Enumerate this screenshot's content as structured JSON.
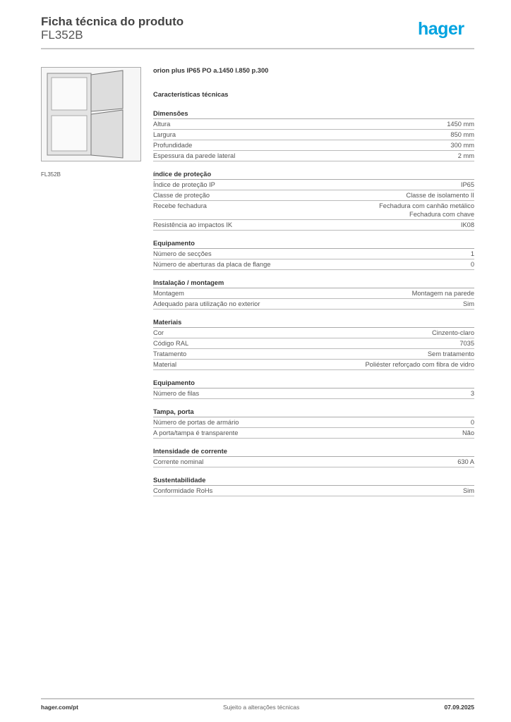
{
  "header": {
    "title": "Ficha técnica do produto",
    "product_code": "FL352B",
    "logo": "hager",
    "logo_color": "#00a3e0"
  },
  "image_caption": "FL352B",
  "product_name": "orion plus IP65 PO a.1450 l.850 p.300",
  "characteristics_title": "Características técnicas",
  "sections": [
    {
      "title": "Dimensões",
      "rows": [
        [
          "Altura",
          "1450 mm"
        ],
        [
          "Largura",
          "850 mm"
        ],
        [
          "Profundidade",
          "300 mm"
        ],
        [
          "Espessura da parede lateral",
          "2 mm"
        ]
      ]
    },
    {
      "title": "índice de proteção",
      "rows": [
        [
          "Índice de proteção IP",
          "IP65"
        ],
        [
          "Classe de proteção",
          "Classe de isolamento II"
        ],
        [
          "Recebe fechadura",
          "Fechadura com canhão metálico\nFechadura com chave"
        ],
        [
          "Resistência ao impactos IK",
          "IK08"
        ]
      ]
    },
    {
      "title": "Equipamento",
      "rows": [
        [
          "Número de secções",
          "1"
        ],
        [
          "Número de aberturas da placa de flange",
          "0"
        ]
      ]
    },
    {
      "title": "Instalação / montagem",
      "rows": [
        [
          "Montagem",
          "Montagem na parede"
        ],
        [
          "Adequado para utilização no exterior",
          "Sim"
        ]
      ]
    },
    {
      "title": "Materiais",
      "rows": [
        [
          "Cor",
          "Cinzento-claro"
        ],
        [
          "Código RAL",
          "7035"
        ],
        [
          "Tratamento",
          "Sem tratamento"
        ],
        [
          "Material",
          "Poliéster reforçado com fibra de vidro"
        ]
      ]
    },
    {
      "title": "Equipamento",
      "rows": [
        [
          "Número de filas",
          "3"
        ]
      ]
    },
    {
      "title": "Tampa, porta",
      "rows": [
        [
          "Número de portas de armário",
          "0"
        ],
        [
          "A porta/tampa é transparente",
          "Não"
        ]
      ]
    },
    {
      "title": "Intensidade de corrente",
      "rows": [
        [
          "Corrente nominal",
          "630 A"
        ]
      ]
    },
    {
      "title": "Sustentabilidade",
      "rows": [
        [
          "Conformidade RoHs",
          "Sim"
        ]
      ]
    }
  ],
  "footer": {
    "website": "hager.com/pt",
    "notice": "Sujeito a alterações técnicas",
    "date": "07.09.2025"
  }
}
